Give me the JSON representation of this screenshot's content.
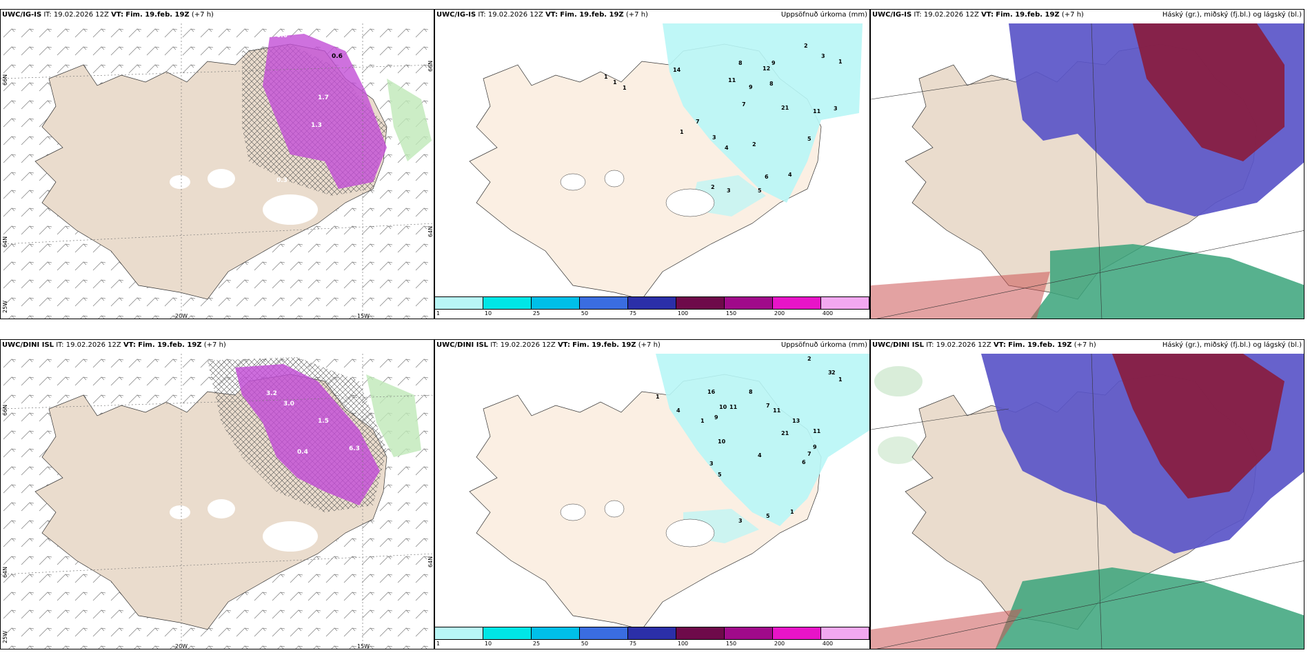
{
  "rows": [
    {
      "wind": {
        "model": "UWC/IG-IS",
        "it": "IT: 19.02.2026 12Z",
        "vt_label": "VT:",
        "vt": "Fim. 19.feb. 19Z",
        "lead": "(+7 h)"
      },
      "precip": {
        "model": "UWC/IG-IS",
        "it": "IT: 19.02.2026 12Z",
        "vt_label": "VT:",
        "vt": "Fim. 19.feb. 19Z",
        "lead": "(+7 h)",
        "right": "Uppsöfnuð úrkoma (mm)"
      },
      "cloud": {
        "model": "UWC/IG-IS",
        "it": "IT: 19.02.2026 12Z",
        "vt_label": "VT:",
        "vt": "Fim. 19.feb. 19Z",
        "lead": "(+7 h)",
        "right": "Háský (gr.), miðský (fj.bl.) og lágský (bl.)"
      }
    },
    {
      "wind": {
        "model": "UWC/DINI ISL",
        "it": "IT: 19.02.2026 12Z",
        "vt_label": "VT:",
        "vt": "Fim. 19.feb. 19Z",
        "lead": "(+7 h)"
      },
      "precip": {
        "model": "UWC/DINI ISL",
        "it": "IT: 19.02.2026 12Z",
        "vt_label": "VT:",
        "vt": "Fim. 19.feb. 19Z",
        "lead": "(+7 h)",
        "right": "Uppsöfnuð úrkoma (mm)"
      },
      "cloud": {
        "model": "UWC/DINI ISL",
        "it": "IT: 19.02.2026 12Z",
        "vt_label": "VT:",
        "vt": "Fim. 19.feb. 19Z",
        "lead": "(+7 h)",
        "right": "Háský (gr.), miðský (fj.bl.) og lágský (bl.)"
      }
    }
  ],
  "axes": {
    "lat_top": "66N",
    "lat_bottom": "64N",
    "lon_left": "20W",
    "lon_right": "15W",
    "corner": "25W"
  },
  "colorbar": {
    "labels": [
      "1",
      "10",
      "25",
      "50",
      "75",
      "100",
      "150",
      "200",
      "400"
    ],
    "colors": [
      "#b8f6f6",
      "#00e6e6",
      "#00bfe8",
      "#3a6de0",
      "#2b2fa8",
      "#6e0a4a",
      "#a00a8a",
      "#e814c8",
      "#f2a8f0"
    ]
  },
  "colors": {
    "land": "#eadccd",
    "land_light": "#fbefe3",
    "snow_magenta": "#c24dd6",
    "cyan_precip": "#b8f6f6",
    "high_cloud": "#5a55c8",
    "mid_cloud": "#8a1c3c",
    "low_cloud": "#3aa37a"
  },
  "precip_values_top": [
    "1",
    "1",
    "1",
    "14",
    "8",
    "12",
    "9",
    "11",
    "9",
    "8",
    "7",
    "21",
    "11",
    "3",
    "2",
    "3",
    "1",
    "7",
    "3",
    "4",
    "2",
    "6",
    "5",
    "4",
    "2",
    "3",
    "5",
    "1"
  ],
  "precip_values_bottom": [
    "2",
    "3",
    "1",
    "2",
    "1",
    "16",
    "8",
    "10",
    "11",
    "9",
    "7",
    "11",
    "13",
    "21",
    "11",
    "7",
    "9",
    "6",
    "4",
    "5",
    "3",
    "10",
    "4",
    "1",
    "3",
    "5",
    "1"
  ]
}
